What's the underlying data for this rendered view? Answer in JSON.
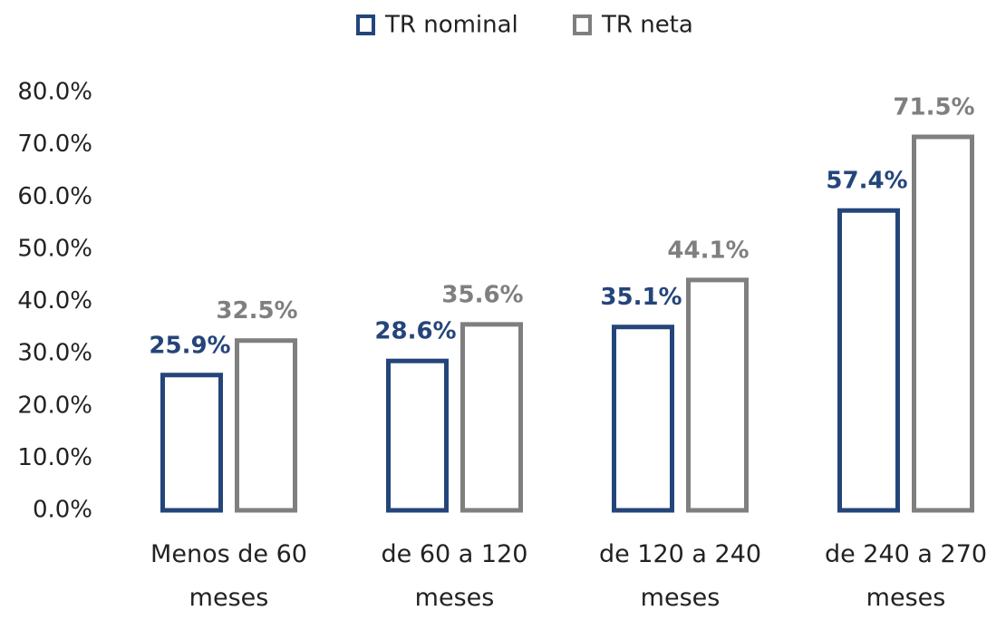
{
  "chart_data": {
    "type": "bar",
    "categories": [
      "Menos de 60 meses",
      "de 60 a 120 meses",
      "de 120 a 240 meses",
      "de 240 a 270 meses"
    ],
    "series": [
      {
        "name": "TR nominal",
        "color": "#24457a",
        "values": [
          25.9,
          28.6,
          35.1,
          57.4
        ],
        "value_labels": [
          "25.9%",
          "28.6%",
          "35.1%",
          "57.4%"
        ]
      },
      {
        "name": "TR neta",
        "color": "#7f7f7f",
        "values": [
          32.5,
          35.6,
          44.1,
          71.5
        ],
        "value_labels": [
          "32.5%",
          "35.6%",
          "44.1%",
          "71.5%"
        ]
      }
    ],
    "ylim": [
      0,
      80
    ],
    "yticks": [
      {
        "value": 0,
        "label": "0.0%"
      },
      {
        "value": 10,
        "label": "10.0%"
      },
      {
        "value": 20,
        "label": "20.0%"
      },
      {
        "value": 30,
        "label": "30.0%"
      },
      {
        "value": 40,
        "label": "40.0%"
      },
      {
        "value": 50,
        "label": "50.0%"
      },
      {
        "value": 60,
        "label": "60.0%"
      },
      {
        "value": 70,
        "label": "70.0%"
      },
      {
        "value": 80,
        "label": "80.0%"
      }
    ],
    "grid": false,
    "legend": "top"
  }
}
